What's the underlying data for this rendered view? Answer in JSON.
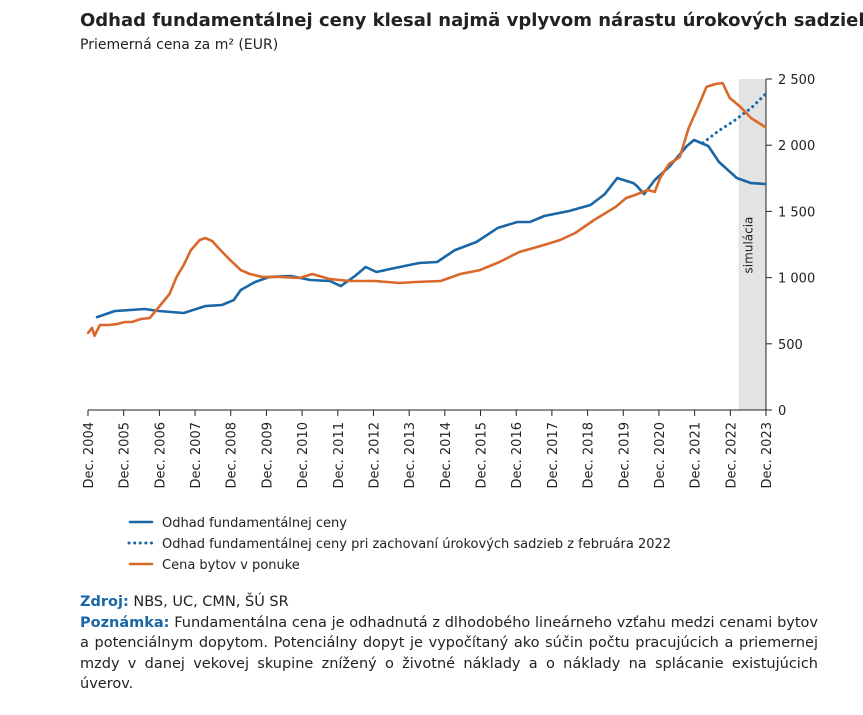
{
  "chart_data": {
    "type": "line",
    "title": "Odhad fundamentálnej ceny klesal najmä vplyvom nárastu úrokových sadzieb",
    "subtitle": "Priemerná cena za m² (EUR)",
    "xlim": [
      2004.917,
      2023.917
    ],
    "xticks": [
      {
        "value": 2004.917,
        "label": "Dec. 2004"
      },
      {
        "value": 2005.917,
        "label": "Dec. 2005"
      },
      {
        "value": 2006.917,
        "label": "Dec. 2006"
      },
      {
        "value": 2007.917,
        "label": "Dec. 2007"
      },
      {
        "value": 2008.917,
        "label": "Dec. 2008"
      },
      {
        "value": 2009.917,
        "label": "Dec. 2009"
      },
      {
        "value": 2010.917,
        "label": "Dec. 2010"
      },
      {
        "value": 2011.917,
        "label": "Dec. 2011"
      },
      {
        "value": 2012.917,
        "label": "Dec. 2012"
      },
      {
        "value": 2013.917,
        "label": "Dec. 2013"
      },
      {
        "value": 2014.917,
        "label": "Dec. 2014"
      },
      {
        "value": 2015.917,
        "label": "Dec. 2015"
      },
      {
        "value": 2016.917,
        "label": "Dec. 2016"
      },
      {
        "value": 2017.917,
        "label": "Dec. 2017"
      },
      {
        "value": 2018.917,
        "label": "Dec. 2018"
      },
      {
        "value": 2019.917,
        "label": "Dec. 2019"
      },
      {
        "value": 2020.917,
        "label": "Dec. 2020"
      },
      {
        "value": 2021.917,
        "label": "Dec. 2021"
      },
      {
        "value": 2022.917,
        "label": "Dec. 2022"
      },
      {
        "value": 2023.917,
        "label": "Dec. 2023"
      }
    ],
    "ylim": [
      0,
      2500
    ],
    "yticks": [
      0,
      500,
      {
        "value": 1000,
        "label": "1 000"
      },
      {
        "value": 1500,
        "label": "1 500"
      },
      {
        "value": 2000,
        "label": "2 000"
      },
      {
        "value": 2500,
        "label": "2 500"
      }
    ],
    "y_axis_side": "right",
    "shaded_region": {
      "x": [
        2023.15,
        2023.917
      ],
      "label": "simulácia",
      "color": "#e3e3e3"
    },
    "series": [
      {
        "name": "Odhad fundamentálnej ceny",
        "color": "#1a66a6",
        "style": "solid",
        "x": [
          2005.17,
          2005.67,
          2006.1,
          2006.5,
          2006.9,
          2007.6,
          2008.2,
          2008.67,
          2009.0,
          2009.2,
          2009.6,
          2010.0,
          2010.6,
          2011.15,
          2011.7,
          2012.0,
          2012.4,
          2012.7,
          2013.0,
          2013.5,
          2014.2,
          2014.7,
          2015.2,
          2015.8,
          2016.4,
          2016.95,
          2017.3,
          2017.7,
          2018.4,
          2019.0,
          2019.4,
          2019.75,
          2020.2,
          2020.3,
          2020.5,
          2020.8,
          2021.2,
          2021.7,
          2021.9,
          2022.3,
          2022.6,
          2023.1,
          2023.5,
          2023.9
        ],
        "values": [
          702,
          748,
          755,
          763,
          748,
          733,
          785,
          793,
          830,
          906,
          967,
          1005,
          1012,
          982,
          974,
          936,
          1012,
          1080,
          1042,
          1072,
          1110,
          1118,
          1208,
          1269,
          1375,
          1420,
          1420,
          1465,
          1503,
          1548,
          1631,
          1752,
          1714,
          1692,
          1631,
          1737,
          1835,
          1994,
          2039,
          1994,
          1873,
          1752,
          1714,
          1707
        ]
      },
      {
        "name": "Odhad fundamentálnej ceny pri zachovaní úrokových sadzieb z februára 2022",
        "color": "#1a66a6",
        "style": "dotted",
        "x": [
          2022.15,
          2022.6,
          2023.0,
          2023.5,
          2023.9
        ],
        "values": [
          2017,
          2110,
          2180,
          2280,
          2385
        ]
      },
      {
        "name": "Cena bytov v ponuke",
        "color": "#d9692b",
        "style": "solid",
        "x": [
          2004.92,
          2005.03,
          2005.1,
          2005.25,
          2005.5,
          2005.75,
          2005.95,
          2006.15,
          2006.4,
          2006.65,
          2006.95,
          2007.2,
          2007.4,
          2007.6,
          2007.8,
          2008.05,
          2008.2,
          2008.4,
          2008.6,
          2008.9,
          2009.2,
          2009.45,
          2009.8,
          2010.3,
          2010.85,
          2011.2,
          2011.7,
          2012.25,
          2012.95,
          2013.65,
          2014.1,
          2014.8,
          2015.35,
          2015.9,
          2016.45,
          2017.0,
          2017.6,
          2018.15,
          2018.57,
          2019.1,
          2019.7,
          2020.0,
          2020.25,
          2020.6,
          2020.8,
          2020.95,
          2021.2,
          2021.5,
          2021.75,
          2022.0,
          2022.25,
          2022.5,
          2022.7,
          2022.9,
          2023.2,
          2023.5,
          2023.9
        ],
        "values": [
          582,
          620,
          560,
          642,
          642,
          650,
          665,
          665,
          687,
          695,
          793,
          876,
          1005,
          1095,
          1208,
          1284,
          1299,
          1276,
          1216,
          1133,
          1057,
          1027,
          1005,
          1005,
          997,
          1027,
          989,
          974,
          974,
          959,
          967,
          974,
          1027,
          1057,
          1118,
          1193,
          1239,
          1284,
          1337,
          1435,
          1533,
          1601,
          1624,
          1662,
          1647,
          1752,
          1858,
          1911,
          2130,
          2281,
          2440,
          2462,
          2470,
          2357,
          2289,
          2205,
          2137
        ]
      }
    ],
    "source_label": "Zdroj:",
    "source": "NBS, UC, CMN, ŠÚ SR",
    "note_label": "Poznámka:",
    "note": "Fundamentálna cena je odhadnutá z dlhodobého lineárneho vzťahu medzi cenami bytov a potenciálnym dopytom. Potenciálny dopyt je vypočítaný ako súčin počtu pracujúcich a priemernej mzdy v danej vekovej skupine znížený o životné náklady a o náklady na splácanie existujúcich úverov."
  }
}
